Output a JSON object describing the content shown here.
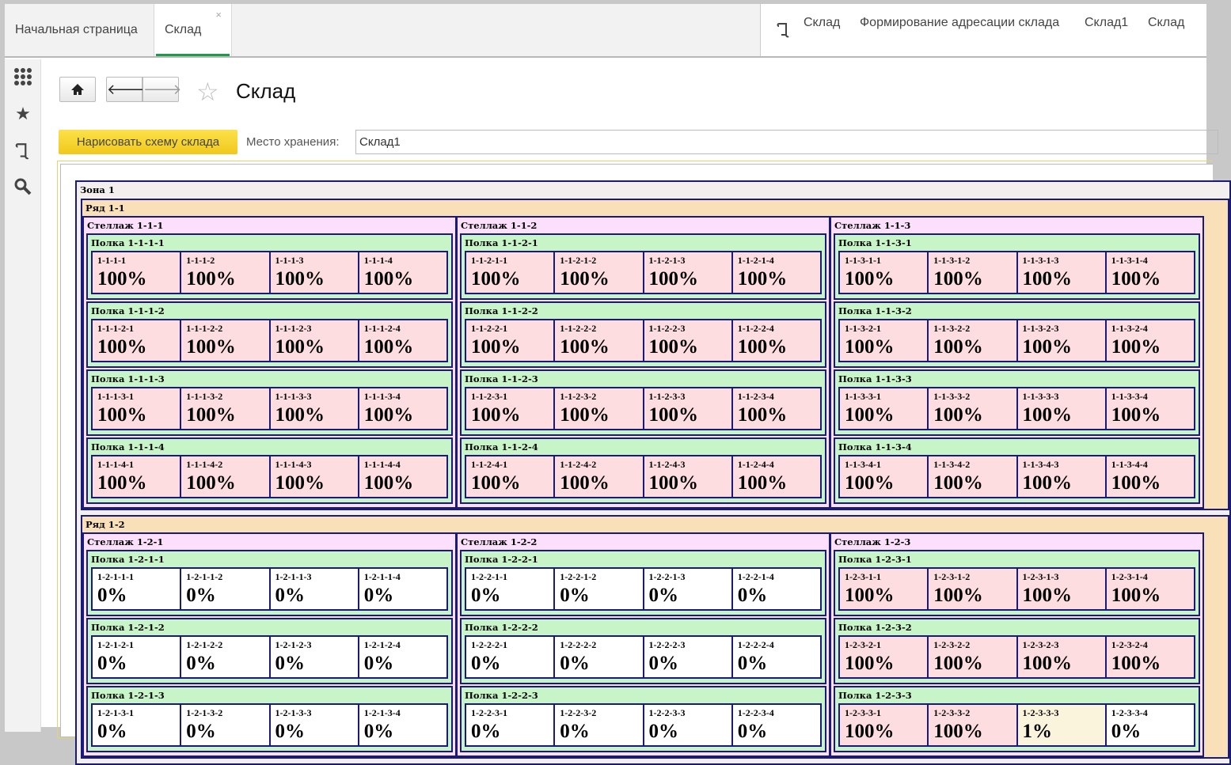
{
  "tabs": [
    "Начальная страница",
    "Склад"
  ],
  "tab_close": "×",
  "breadcrumbs": [
    "Склад",
    "Формирование адресации склада",
    "Склад1",
    "Склад"
  ],
  "sidebar": [
    {
      "icon": "apps-grid-icon"
    },
    {
      "icon": "favorites-star-icon"
    },
    {
      "icon": "history-scroll-icon"
    },
    {
      "icon": "search-icon"
    }
  ],
  "page": {
    "title": "Склад",
    "draw_button": "Нарисовать схему склада",
    "storage_label": "Место хранения:",
    "storage_value": "Склад1"
  },
  "colors": {
    "full": "#fddde0",
    "empty": "#ffffff",
    "partial": "#fbf4dc",
    "shelf": "#c8f5c8",
    "rack": "#fce0fb",
    "row": "#fae0b8",
    "border": "#1a1a7a",
    "tab_active": "#1f9a4a",
    "draw_button": "#f5d22e"
  },
  "zone": {
    "label": "Зона 1",
    "rows": [
      {
        "label": "Ряд 1-1",
        "racks": [
          {
            "label": "Стеллаж 1-1-1",
            "shelves": [
              {
                "label": "Полка 1-1-1-1",
                "cells": [
                  [
                    "1-1-1-1",
                    "100%"
                  ],
                  [
                    "1-1-1-2",
                    "100%"
                  ],
                  [
                    "1-1-1-3",
                    "100%"
                  ],
                  [
                    "1-1-1-4",
                    "100%"
                  ]
                ]
              },
              {
                "label": "Полка 1-1-1-2",
                "cells": [
                  [
                    "1-1-1-2-1",
                    "100%"
                  ],
                  [
                    "1-1-1-2-2",
                    "100%"
                  ],
                  [
                    "1-1-1-2-3",
                    "100%"
                  ],
                  [
                    "1-1-1-2-4",
                    "100%"
                  ]
                ]
              },
              {
                "label": "Полка 1-1-1-3",
                "cells": [
                  [
                    "1-1-1-3-1",
                    "100%"
                  ],
                  [
                    "1-1-1-3-2",
                    "100%"
                  ],
                  [
                    "1-1-1-3-3",
                    "100%"
                  ],
                  [
                    "1-1-1-3-4",
                    "100%"
                  ]
                ]
              },
              {
                "label": "Полка 1-1-1-4",
                "cells": [
                  [
                    "1-1-1-4-1",
                    "100%"
                  ],
                  [
                    "1-1-1-4-2",
                    "100%"
                  ],
                  [
                    "1-1-1-4-3",
                    "100%"
                  ],
                  [
                    "1-1-1-4-4",
                    "100%"
                  ]
                ]
              }
            ]
          },
          {
            "label": "Стеллаж 1-1-2",
            "shelves": [
              {
                "label": "Полка 1-1-2-1",
                "cells": [
                  [
                    "1-1-2-1-1",
                    "100%"
                  ],
                  [
                    "1-1-2-1-2",
                    "100%"
                  ],
                  [
                    "1-1-2-1-3",
                    "100%"
                  ],
                  [
                    "1-1-2-1-4",
                    "100%"
                  ]
                ]
              },
              {
                "label": "Полка 1-1-2-2",
                "cells": [
                  [
                    "1-1-2-2-1",
                    "100%"
                  ],
                  [
                    "1-1-2-2-2",
                    "100%"
                  ],
                  [
                    "1-1-2-2-3",
                    "100%"
                  ],
                  [
                    "1-1-2-2-4",
                    "100%"
                  ]
                ]
              },
              {
                "label": "Полка 1-1-2-3",
                "cells": [
                  [
                    "1-1-2-3-1",
                    "100%"
                  ],
                  [
                    "1-1-2-3-2",
                    "100%"
                  ],
                  [
                    "1-1-2-3-3",
                    "100%"
                  ],
                  [
                    "1-1-2-3-4",
                    "100%"
                  ]
                ]
              },
              {
                "label": "Полка 1-1-2-4",
                "cells": [
                  [
                    "1-1-2-4-1",
                    "100%"
                  ],
                  [
                    "1-1-2-4-2",
                    "100%"
                  ],
                  [
                    "1-1-2-4-3",
                    "100%"
                  ],
                  [
                    "1-1-2-4-4",
                    "100%"
                  ]
                ]
              }
            ]
          },
          {
            "label": "Стеллаж 1-1-3",
            "shelves": [
              {
                "label": "Полка 1-1-3-1",
                "cells": [
                  [
                    "1-1-3-1-1",
                    "100%"
                  ],
                  [
                    "1-1-3-1-2",
                    "100%"
                  ],
                  [
                    "1-1-3-1-3",
                    "100%"
                  ],
                  [
                    "1-1-3-1-4",
                    "100%"
                  ]
                ]
              },
              {
                "label": "Полка 1-1-3-2",
                "cells": [
                  [
                    "1-1-3-2-1",
                    "100%"
                  ],
                  [
                    "1-1-3-2-2",
                    "100%"
                  ],
                  [
                    "1-1-3-2-3",
                    "100%"
                  ],
                  [
                    "1-1-3-2-4",
                    "100%"
                  ]
                ]
              },
              {
                "label": "Полка 1-1-3-3",
                "cells": [
                  [
                    "1-1-3-3-1",
                    "100%"
                  ],
                  [
                    "1-1-3-3-2",
                    "100%"
                  ],
                  [
                    "1-1-3-3-3",
                    "100%"
                  ],
                  [
                    "1-1-3-3-4",
                    "100%"
                  ]
                ]
              },
              {
                "label": "Полка 1-1-3-4",
                "cells": [
                  [
                    "1-1-3-4-1",
                    "100%"
                  ],
                  [
                    "1-1-3-4-2",
                    "100%"
                  ],
                  [
                    "1-1-3-4-3",
                    "100%"
                  ],
                  [
                    "1-1-3-4-4",
                    "100%"
                  ]
                ]
              }
            ]
          }
        ]
      },
      {
        "label": "Ряд 1-2",
        "racks": [
          {
            "label": "Стеллаж 1-2-1",
            "shelves": [
              {
                "label": "Полка 1-2-1-1",
                "cells": [
                  [
                    "1-2-1-1-1",
                    "0%"
                  ],
                  [
                    "1-2-1-1-2",
                    "0%"
                  ],
                  [
                    "1-2-1-1-3",
                    "0%"
                  ],
                  [
                    "1-2-1-1-4",
                    "0%"
                  ]
                ]
              },
              {
                "label": "Полка 1-2-1-2",
                "cells": [
                  [
                    "1-2-1-2-1",
                    "0%"
                  ],
                  [
                    "1-2-1-2-2",
                    "0%"
                  ],
                  [
                    "1-2-1-2-3",
                    "0%"
                  ],
                  [
                    "1-2-1-2-4",
                    "0%"
                  ]
                ]
              },
              {
                "label": "Полка 1-2-1-3",
                "cells": [
                  [
                    "1-2-1-3-1",
                    "0%"
                  ],
                  [
                    "1-2-1-3-2",
                    "0%"
                  ],
                  [
                    "1-2-1-3-3",
                    "0%"
                  ],
                  [
                    "1-2-1-3-4",
                    "0%"
                  ]
                ]
              }
            ]
          },
          {
            "label": "Стеллаж 1-2-2",
            "shelves": [
              {
                "label": "Полка 1-2-2-1",
                "cells": [
                  [
                    "1-2-2-1-1",
                    "0%"
                  ],
                  [
                    "1-2-2-1-2",
                    "0%"
                  ],
                  [
                    "1-2-2-1-3",
                    "0%"
                  ],
                  [
                    "1-2-2-1-4",
                    "0%"
                  ]
                ]
              },
              {
                "label": "Полка 1-2-2-2",
                "cells": [
                  [
                    "1-2-2-2-1",
                    "0%"
                  ],
                  [
                    "1-2-2-2-2",
                    "0%"
                  ],
                  [
                    "1-2-2-2-3",
                    "0%"
                  ],
                  [
                    "1-2-2-2-4",
                    "0%"
                  ]
                ]
              },
              {
                "label": "Полка 1-2-2-3",
                "cells": [
                  [
                    "1-2-2-3-1",
                    "0%"
                  ],
                  [
                    "1-2-2-3-2",
                    "0%"
                  ],
                  [
                    "1-2-2-3-3",
                    "0%"
                  ],
                  [
                    "1-2-2-3-4",
                    "0%"
                  ]
                ]
              }
            ]
          },
          {
            "label": "Стеллаж 1-2-3",
            "shelves": [
              {
                "label": "Полка 1-2-3-1",
                "cells": [
                  [
                    "1-2-3-1-1",
                    "100%"
                  ],
                  [
                    "1-2-3-1-2",
                    "100%"
                  ],
                  [
                    "1-2-3-1-3",
                    "100%"
                  ],
                  [
                    "1-2-3-1-4",
                    "100%"
                  ]
                ]
              },
              {
                "label": "Полка 1-2-3-2",
                "cells": [
                  [
                    "1-2-3-2-1",
                    "100%"
                  ],
                  [
                    "1-2-3-2-2",
                    "100%"
                  ],
                  [
                    "1-2-3-2-3",
                    "100%"
                  ],
                  [
                    "1-2-3-2-4",
                    "100%"
                  ]
                ]
              },
              {
                "label": "Полка 1-2-3-3",
                "cells": [
                  [
                    "1-2-3-3-1",
                    "100%"
                  ],
                  [
                    "1-2-3-3-2",
                    "100%"
                  ],
                  [
                    "1-2-3-3-3",
                    "1%"
                  ],
                  [
                    "1-2-3-3-4",
                    "0%"
                  ]
                ]
              }
            ]
          }
        ]
      }
    ]
  }
}
